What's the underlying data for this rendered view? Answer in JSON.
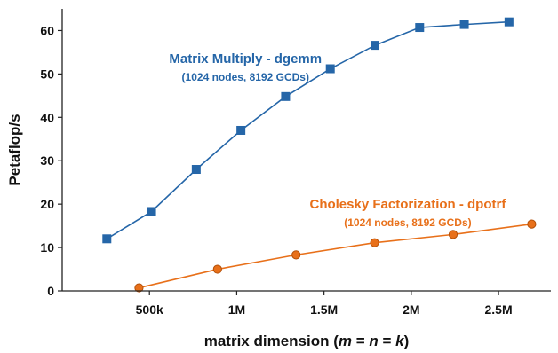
{
  "chart_data": {
    "type": "line",
    "xlabel": {
      "prefix": "matrix dimension (",
      "m": "m",
      "eq1": " = ",
      "n": "n",
      "eq2": " = ",
      "k": "k",
      "suffix": ")"
    },
    "ylabel": "Petaflop/s",
    "xlim": [
      0,
      2800000
    ],
    "ylim": [
      0,
      65
    ],
    "x_ticks": [
      {
        "value": 500000,
        "label": "500k"
      },
      {
        "value": 1000000,
        "label": "1M"
      },
      {
        "value": 1500000,
        "label": "1.5M"
      },
      {
        "value": 2000000,
        "label": "2M"
      },
      {
        "value": 2500000,
        "label": "2.5M"
      }
    ],
    "y_ticks": [
      {
        "value": 0,
        "label": "0"
      },
      {
        "value": 10,
        "label": "10"
      },
      {
        "value": 20,
        "label": "20"
      },
      {
        "value": 30,
        "label": "30"
      },
      {
        "value": 40,
        "label": "40"
      },
      {
        "value": 50,
        "label": "50"
      },
      {
        "value": 60,
        "label": "60"
      }
    ],
    "grid": false,
    "series": [
      {
        "name": "Matrix Multiply - dgemm",
        "detail": "(1024 nodes, 8192 GCDs)",
        "color": "#2566a8",
        "marker": "square",
        "label_anchor": [
          1050000,
          52.5
        ],
        "x": [
          256000,
          512000,
          768000,
          1024000,
          1280000,
          1536000,
          1792000,
          2048000,
          2304000,
          2560000
        ],
        "y": [
          12.0,
          18.3,
          28.0,
          37.0,
          44.8,
          51.2,
          56.6,
          60.7,
          61.4,
          62.0
        ]
      },
      {
        "name": "Cholesky Factorization - dpotrf",
        "detail": "(1024 nodes, 8192 GCDs)",
        "color": "#e8701a",
        "marker": "circle",
        "label_anchor": [
          1980000,
          19.0
        ],
        "x": [
          440000,
          890000,
          1340000,
          1790000,
          2240000,
          2690000
        ],
        "y": [
          0.7,
          5.0,
          8.3,
          11.1,
          13.0,
          15.4
        ]
      }
    ]
  }
}
